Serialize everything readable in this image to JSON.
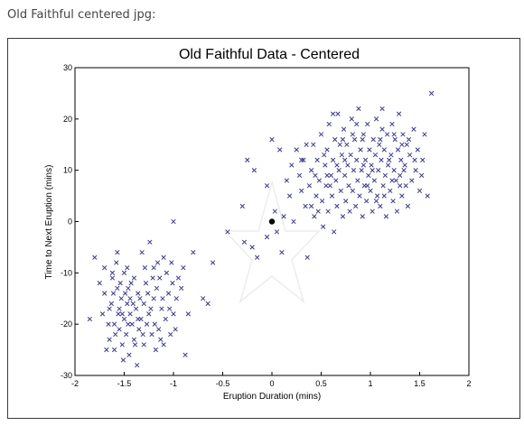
{
  "page": {
    "caption": "Old Faithful centered jpg:"
  },
  "colors": {
    "marker": "#3a3a8a",
    "origin_dot": "#000000",
    "star_outline": "#ececec",
    "axis": "#000000"
  },
  "chart_data": {
    "type": "scatter",
    "title": "Old Faithful Data - Centered",
    "xlabel": "Eruption Duration (mins)",
    "ylabel": "Time to Next Eruption (mins)",
    "xlim": [
      -2,
      2
    ],
    "ylim": [
      -30,
      30
    ],
    "xticks": [
      -2,
      -1.5,
      -1,
      -0.5,
      0,
      0.5,
      1,
      1.5,
      2
    ],
    "xtick_labels": [
      "-2",
      "-1.5",
      "-1",
      "-0.5",
      "0",
      "0.5",
      "1",
      "1.5",
      "2"
    ],
    "yticks": [
      -30,
      -20,
      -10,
      0,
      10,
      20,
      30
    ],
    "ytick_labels": [
      "-30",
      "-20",
      "-10",
      "0",
      "10",
      "20",
      "30"
    ],
    "grid": false,
    "marker": "x",
    "origin": [
      0,
      0
    ],
    "points": [
      [
        -1.8,
        -7
      ],
      [
        -1.75,
        -12
      ],
      [
        -1.7,
        -9
      ],
      [
        -1.7,
        -14
      ],
      [
        -1.65,
        -17
      ],
      [
        -1.65,
        -23
      ],
      [
        -1.62,
        -11
      ],
      [
        -1.6,
        -20
      ],
      [
        -1.6,
        -25
      ],
      [
        -1.58,
        -8
      ],
      [
        -1.57,
        -13
      ],
      [
        -1.55,
        -17
      ],
      [
        -1.55,
        -21
      ],
      [
        -1.53,
        -15
      ],
      [
        -1.52,
        -24
      ],
      [
        -1.5,
        -10
      ],
      [
        -1.5,
        -19
      ],
      [
        -1.48,
        -22
      ],
      [
        -1.47,
        -16
      ],
      [
        -1.46,
        -13
      ],
      [
        -1.45,
        -26
      ],
      [
        -1.44,
        -18
      ],
      [
        -1.42,
        -20
      ],
      [
        -1.4,
        -11
      ],
      [
        -1.4,
        -23
      ],
      [
        -1.38,
        -17
      ],
      [
        -1.37,
        -28
      ],
      [
        -1.36,
        -14
      ],
      [
        -1.35,
        -21
      ],
      [
        -1.33,
        -19
      ],
      [
        -1.32,
        -6
      ],
      [
        -1.3,
        -16
      ],
      [
        -1.3,
        -24
      ],
      [
        -1.28,
        -12
      ],
      [
        -1.27,
        -20
      ],
      [
        -1.25,
        -18
      ],
      [
        -1.24,
        -4
      ],
      [
        -1.22,
        -22
      ],
      [
        -1.2,
        -9
      ],
      [
        -1.2,
        -15
      ],
      [
        -1.18,
        -25
      ],
      [
        -1.17,
        -13
      ],
      [
        -1.15,
        -21
      ],
      [
        -1.14,
        -11
      ],
      [
        -1.12,
        -17
      ],
      [
        -1.1,
        -7
      ],
      [
        -1.1,
        -24
      ],
      [
        -1.08,
        -19
      ],
      [
        -1.05,
        -14
      ],
      [
        -1.03,
        -22
      ],
      [
        -1.02,
        -8
      ],
      [
        -1,
        -18
      ],
      [
        -1,
        0
      ],
      [
        -0.98,
        -21
      ],
      [
        -0.95,
        -11
      ],
      [
        -0.9,
        -9
      ],
      [
        -0.88,
        -26
      ],
      [
        -0.85,
        -18
      ],
      [
        -0.8,
        -6
      ],
      [
        -0.7,
        -15
      ],
      [
        -0.65,
        -16
      ],
      [
        -0.6,
        -8
      ],
      [
        -0.45,
        -2
      ],
      [
        -1.85,
        -19
      ],
      [
        -1.72,
        -18
      ],
      [
        -1.68,
        -25
      ],
      [
        -1.66,
        -20
      ],
      [
        -1.63,
        -16
      ],
      [
        -1.61,
        -14
      ],
      [
        -1.59,
        -22
      ],
      [
        -1.56,
        -18
      ],
      [
        -1.54,
        -12
      ],
      [
        -1.51,
        -27
      ],
      [
        -1.49,
        -14
      ],
      [
        -1.46,
        -20
      ],
      [
        -1.43,
        -12
      ],
      [
        -1.41,
        -16
      ],
      [
        -1.39,
        -24
      ],
      [
        -1.36,
        -19
      ],
      [
        -1.34,
        -15
      ],
      [
        -1.31,
        -22
      ],
      [
        -1.29,
        -9
      ],
      [
        -1.26,
        -14
      ],
      [
        -1.23,
        -17
      ],
      [
        -1.21,
        -11
      ],
      [
        -1.19,
        -20
      ],
      [
        -1.16,
        -8
      ],
      [
        -1.13,
        -23
      ],
      [
        -1.11,
        -15
      ],
      [
        -1.07,
        -10
      ],
      [
        -1.04,
        -17
      ],
      [
        -1.01,
        -12
      ],
      [
        -0.97,
        -15
      ],
      [
        -0.92,
        -13
      ],
      [
        -1.62,
        -10
      ],
      [
        -1.57,
        -6
      ],
      [
        -1.52,
        -18
      ],
      [
        -1.47,
        -9
      ],
      [
        -1.44,
        -15
      ],
      [
        -0.28,
        -4
      ],
      [
        -0.2,
        -5
      ],
      [
        -0.15,
        -7
      ],
      [
        -0.05,
        -3
      ],
      [
        0.05,
        -2
      ],
      [
        0.1,
        -6
      ],
      [
        -0.3,
        3
      ],
      [
        -0.25,
        12
      ],
      [
        -0.18,
        10
      ],
      [
        -0.05,
        7
      ],
      [
        0,
        16
      ],
      [
        0.03,
        2
      ],
      [
        0.08,
        14
      ],
      [
        0.12,
        1
      ],
      [
        0.15,
        8
      ],
      [
        0.18,
        5
      ],
      [
        0.2,
        11
      ],
      [
        0.22,
        0
      ],
      [
        0.25,
        14
      ],
      [
        0.28,
        9
      ],
      [
        0.3,
        6
      ],
      [
        0.32,
        12
      ],
      [
        0.34,
        3
      ],
      [
        0.36,
        -7
      ],
      [
        0.38,
        7
      ],
      [
        0.4,
        10
      ],
      [
        0.42,
        15
      ],
      [
        0.43,
        1
      ],
      [
        0.45,
        5
      ],
      [
        0.46,
        12
      ],
      [
        0.48,
        8
      ],
      [
        0.5,
        17
      ],
      [
        0.51,
        4
      ],
      [
        0.52,
        -1
      ],
      [
        0.54,
        11
      ],
      [
        0.55,
        7
      ],
      [
        0.56,
        14
      ],
      [
        0.57,
        2
      ],
      [
        0.58,
        19
      ],
      [
        0.6,
        9
      ],
      [
        0.61,
        5
      ],
      [
        0.62,
        12
      ],
      [
        0.63,
        -2
      ],
      [
        0.64,
        16
      ],
      [
        0.65,
        8
      ],
      [
        0.66,
        3
      ],
      [
        0.67,
        21
      ],
      [
        0.68,
        10
      ],
      [
        0.7,
        6
      ],
      [
        0.71,
        13
      ],
      [
        0.72,
        1
      ],
      [
        0.73,
        18
      ],
      [
        0.74,
        9
      ],
      [
        0.75,
        4
      ],
      [
        0.76,
        15
      ],
      [
        0.77,
        11
      ],
      [
        0.78,
        7
      ],
      [
        0.79,
        2
      ],
      [
        0.8,
        13
      ],
      [
        0.81,
        20
      ],
      [
        0.82,
        6
      ],
      [
        0.83,
        10
      ],
      [
        0.84,
        16
      ],
      [
        0.85,
        3
      ],
      [
        0.86,
        12
      ],
      [
        0.87,
        8
      ],
      [
        0.88,
        22
      ],
      [
        0.89,
        5
      ],
      [
        0.9,
        14
      ],
      [
        0.91,
        10
      ],
      [
        0.92,
        1
      ],
      [
        0.93,
        17
      ],
      [
        0.94,
        7
      ],
      [
        0.95,
        12
      ],
      [
        0.96,
        4
      ],
      [
        0.97,
        19
      ],
      [
        0.98,
        9
      ],
      [
        0.99,
        14
      ],
      [
        1,
        6
      ],
      [
        1.01,
        11
      ],
      [
        1.02,
        2
      ],
      [
        1.03,
        16
      ],
      [
        1.04,
        8
      ],
      [
        1.05,
        13
      ],
      [
        1.06,
        20
      ],
      [
        1.07,
        5
      ],
      [
        1.08,
        10
      ],
      [
        1.09,
        15
      ],
      [
        1.1,
        3
      ],
      [
        1.11,
        12
      ],
      [
        1.12,
        18
      ],
      [
        1.13,
        7
      ],
      [
        1.14,
        14
      ],
      [
        1.15,
        9
      ],
      [
        1.16,
        1
      ],
      [
        1.17,
        17
      ],
      [
        1.18,
        11
      ],
      [
        1.2,
        6
      ],
      [
        1.21,
        13
      ],
      [
        1.22,
        19
      ],
      [
        1.23,
        4
      ],
      [
        1.24,
        10
      ],
      [
        1.25,
        16
      ],
      [
        1.26,
        8
      ],
      [
        1.27,
        2
      ],
      [
        1.28,
        14
      ],
      [
        1.29,
        21
      ],
      [
        1.3,
        9
      ],
      [
        1.31,
        12
      ],
      [
        1.32,
        5
      ],
      [
        1.33,
        17
      ],
      [
        1.35,
        11
      ],
      [
        1.36,
        7
      ],
      [
        1.37,
        15
      ],
      [
        1.38,
        3
      ],
      [
        1.4,
        13
      ],
      [
        1.42,
        8
      ],
      [
        1.44,
        18
      ],
      [
        1.46,
        10
      ],
      [
        1.48,
        14
      ],
      [
        1.5,
        6
      ],
      [
        1.53,
        12
      ],
      [
        1.55,
        17
      ],
      [
        1.58,
        5
      ],
      [
        1.62,
        25
      ],
      [
        0.3,
        12
      ],
      [
        0.35,
        15
      ],
      [
        0.4,
        3
      ],
      [
        0.44,
        9
      ],
      [
        0.47,
        2
      ],
      [
        0.53,
        13
      ],
      [
        0.59,
        7
      ],
      [
        0.69,
        15
      ],
      [
        0.74,
        12
      ],
      [
        0.82,
        17
      ],
      [
        0.86,
        19
      ],
      [
        0.93,
        11
      ],
      [
        0.97,
        7
      ],
      [
        1.02,
        10
      ],
      [
        1.06,
        4
      ],
      [
        1.1,
        16
      ],
      [
        1.14,
        5
      ],
      [
        1.19,
        12
      ],
      [
        1.24,
        17
      ],
      [
        1.3,
        7
      ],
      [
        1.34,
        10
      ],
      [
        1.39,
        16
      ],
      [
        1.45,
        12
      ],
      [
        1.52,
        9
      ],
      [
        0.62,
        21
      ],
      [
        0.72,
        16
      ],
      [
        0.92,
        16
      ],
      [
        1.12,
        22
      ],
      [
        1.22,
        8
      ],
      [
        1.32,
        15
      ],
      [
        0.56,
        9
      ],
      [
        0.66,
        11
      ]
    ]
  }
}
